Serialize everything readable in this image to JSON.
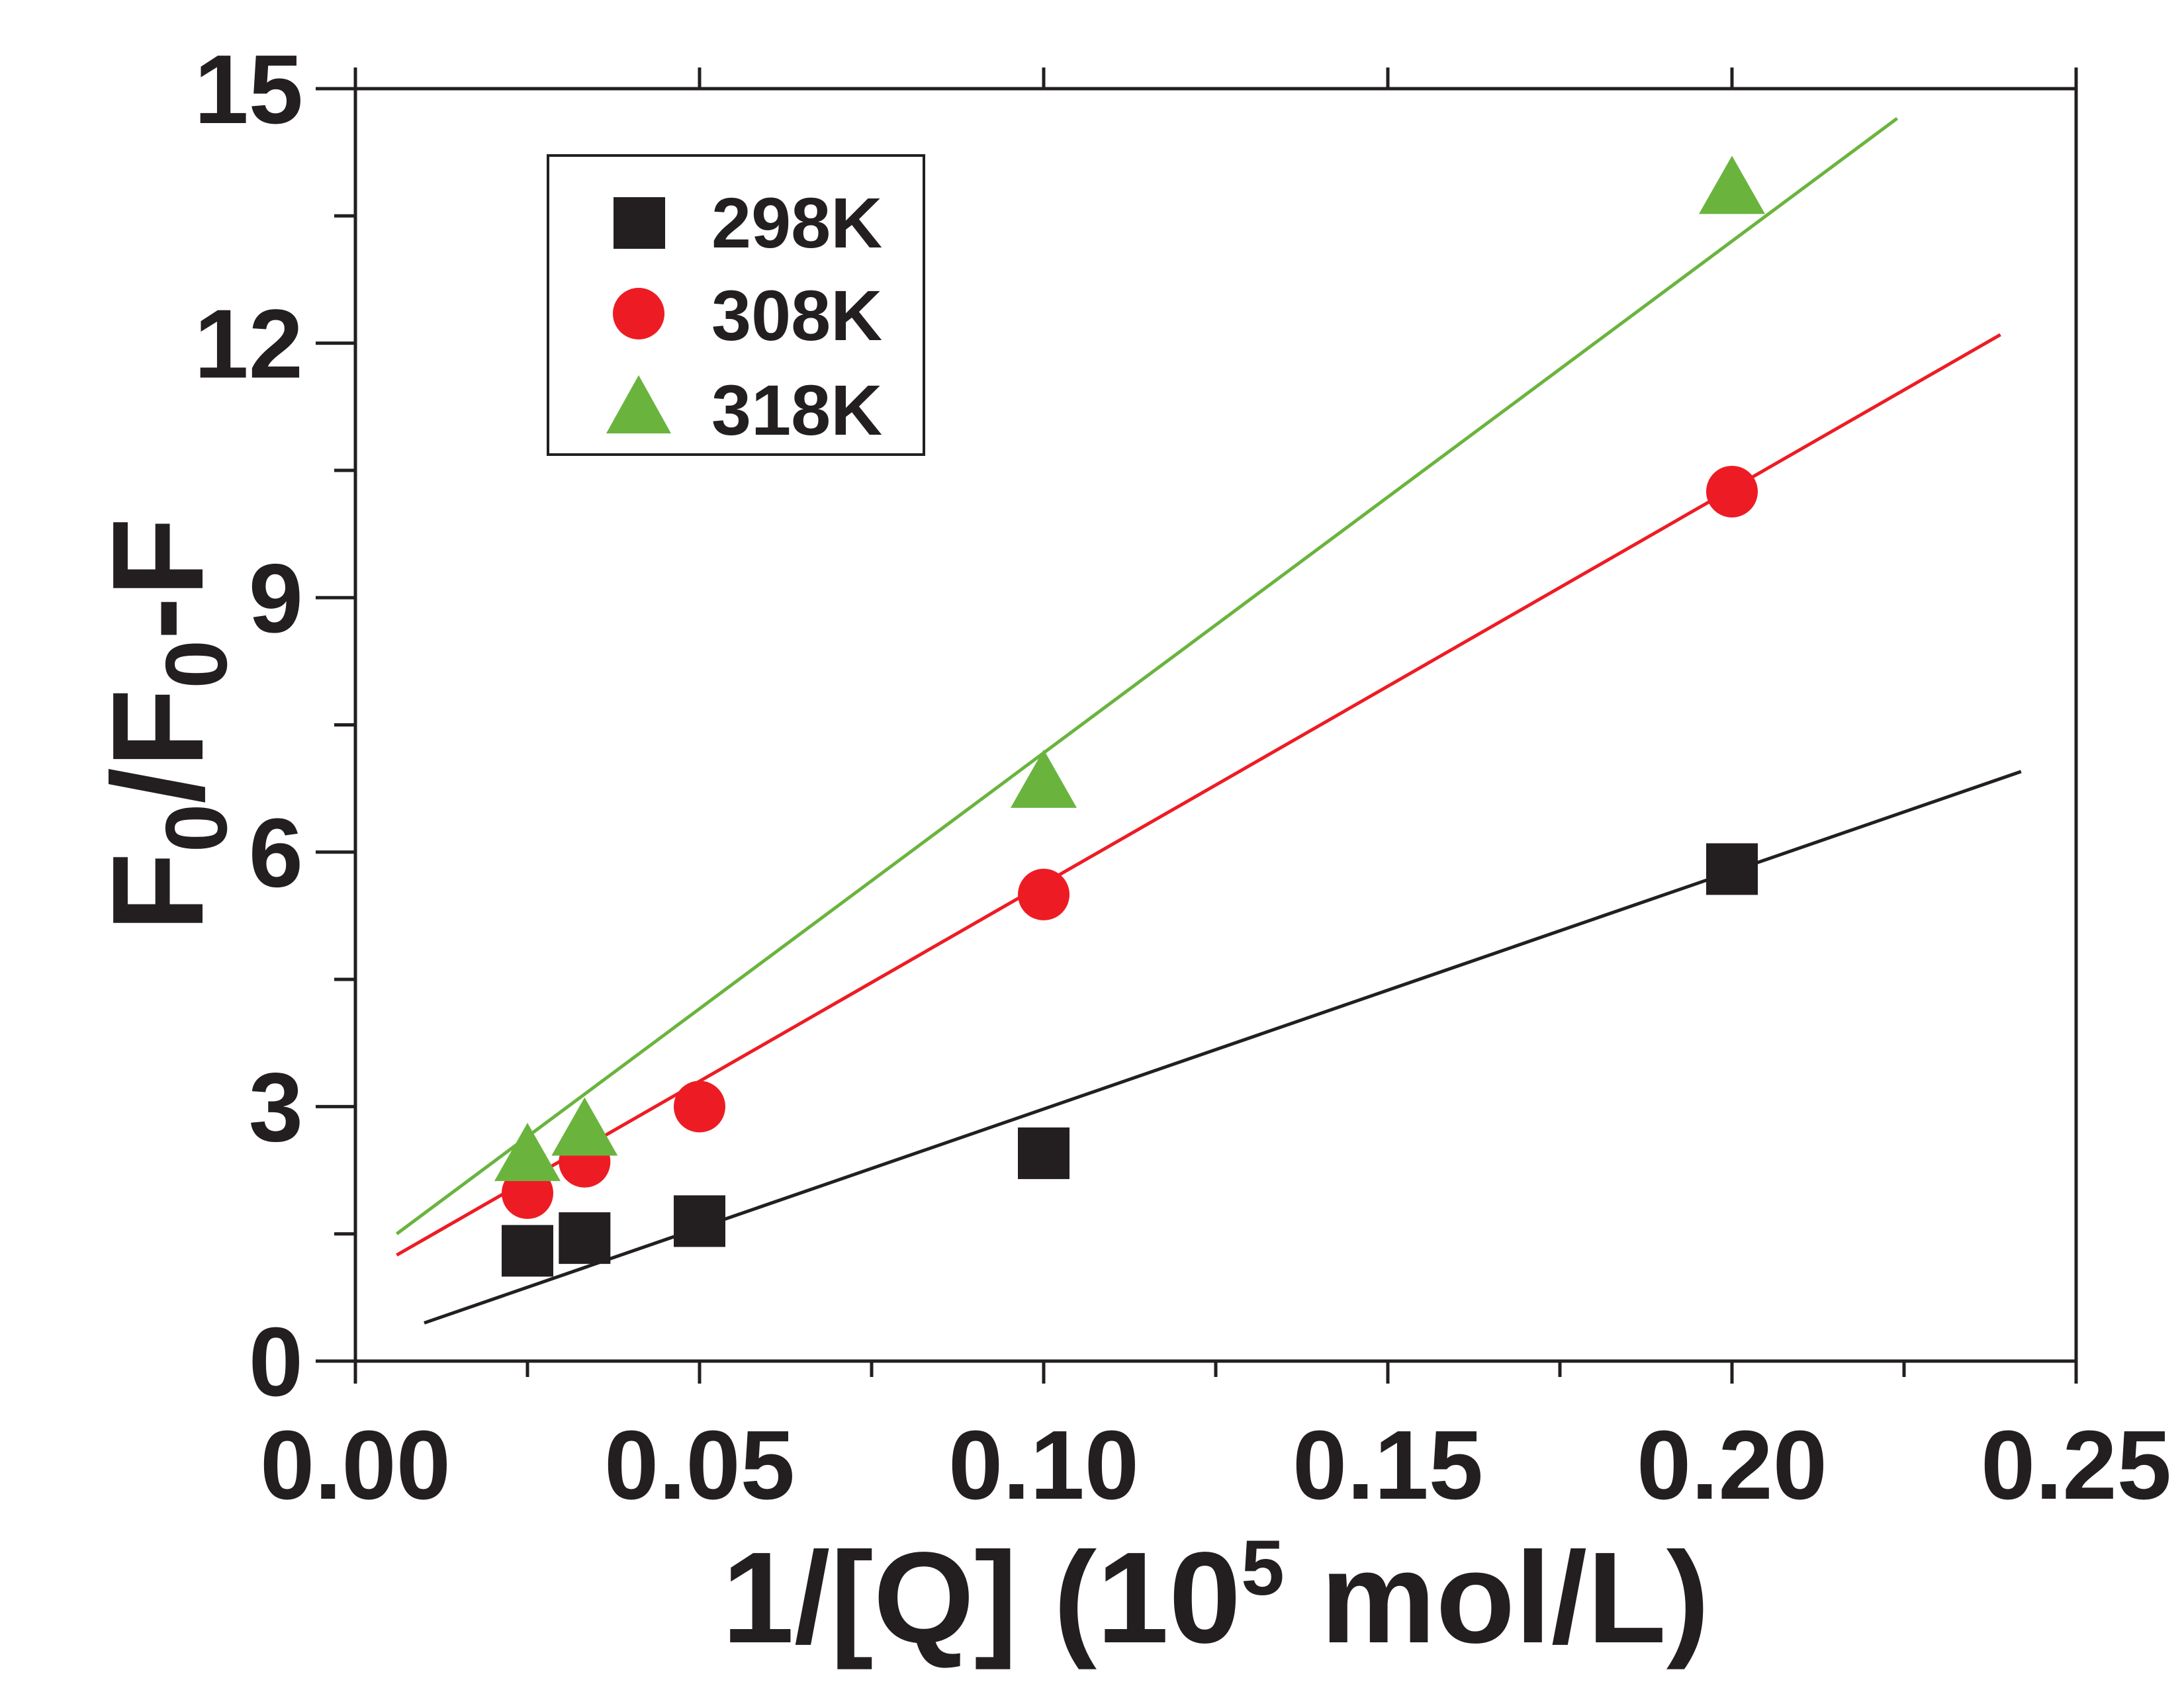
{
  "chart_data": {
    "type": "scatter",
    "title": "",
    "xlabel": {
      "main": "1/[Q] (10",
      "superscript": "5",
      "suffix": " mol/L)"
    },
    "ylabel": {
      "f": "F",
      "sub0": "0",
      "slash": "/F",
      "sub1": "0",
      "tail": "-F"
    },
    "xlim": [
      0.0,
      0.25
    ],
    "ylim": [
      0,
      15
    ],
    "xticks": [
      0.0,
      0.05,
      0.1,
      0.15,
      0.2,
      0.25
    ],
    "xtick_labels": [
      "0.00",
      "0.05",
      "0.10",
      "0.15",
      "0.20",
      "0.25"
    ],
    "xminor": [
      0.025,
      0.075,
      0.125,
      0.175,
      0.225
    ],
    "yticks": [
      0,
      3,
      6,
      9,
      12,
      15
    ],
    "ytick_labels": [
      "0",
      "3",
      "6",
      "9",
      "12",
      "15"
    ],
    "yminor": [
      1.5,
      4.5,
      7.5,
      10.5,
      13.5
    ],
    "legend_position": "top-left",
    "series": [
      {
        "name": "298K",
        "marker": "square",
        "color": "#231f20",
        "x": [
          0.025,
          0.0333,
          0.05,
          0.1,
          0.2
        ],
        "y": [
          1.3,
          1.45,
          1.65,
          2.45,
          5.8
        ],
        "fit": {
          "x": [
            0.01,
            0.242
          ],
          "y": [
            0.45,
            6.95
          ]
        }
      },
      {
        "name": "308K",
        "marker": "circle",
        "color": "#ed1c24",
        "x": [
          0.025,
          0.0333,
          0.05,
          0.1,
          0.2
        ],
        "y": [
          1.98,
          2.35,
          3.0,
          5.5,
          10.25
        ],
        "fit": {
          "x": [
            0.006,
            0.239
          ],
          "y": [
            1.25,
            12.1
          ]
        }
      },
      {
        "name": "318K",
        "marker": "triangle",
        "color": "#6ab43e",
        "x": [
          0.025,
          0.0333,
          0.1,
          0.2
        ],
        "y": [
          2.45,
          2.75,
          6.85,
          13.85
        ],
        "fit": {
          "x": [
            0.006,
            0.224
          ],
          "y": [
            1.5,
            14.65
          ]
        }
      }
    ]
  }
}
